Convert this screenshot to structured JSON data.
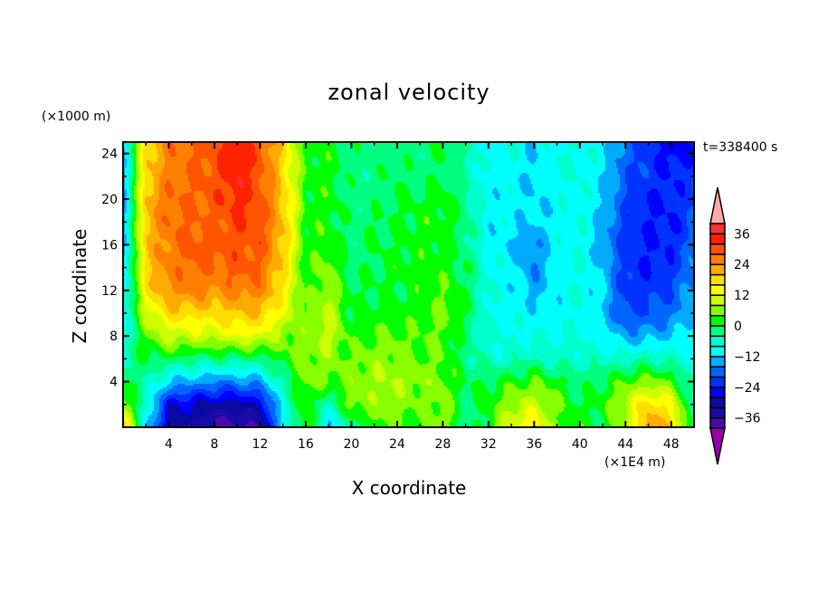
{
  "chart_data": {
    "type": "heatmap",
    "subtype": "filled-contour",
    "title": "zonal velocity",
    "xlabel": "X coordinate",
    "ylabel": "Z coordinate",
    "x_unit_label": "(×1E4 m)",
    "y_unit_label": "(×1000 m)",
    "annotation": "t=338400 s",
    "xlim": [
      0,
      50
    ],
    "ylim": [
      0,
      25
    ],
    "xticks": [
      4,
      8,
      12,
      16,
      20,
      24,
      28,
      32,
      36,
      40,
      44,
      48
    ],
    "yticks": [
      4,
      8,
      12,
      16,
      20,
      24
    ],
    "grid_x": [
      0,
      2,
      4,
      6,
      8,
      10,
      12,
      14,
      16,
      18,
      20,
      22,
      24,
      26,
      28,
      30,
      32,
      34,
      36,
      38,
      40,
      42,
      44,
      46,
      48,
      50
    ],
    "grid_z": [
      0,
      2,
      4,
      6,
      8,
      10,
      12,
      14,
      16,
      18,
      20,
      22,
      24
    ],
    "values": [
      [
        20,
        -10,
        -30,
        -32,
        -38,
        -38,
        -36,
        -10,
        4,
        -12,
        -4,
        4,
        4,
        2,
        8,
        -4,
        2,
        12,
        16,
        4,
        2,
        0,
        8,
        24,
        20,
        -4
      ],
      [
        8,
        -6,
        -26,
        -28,
        -30,
        -30,
        -28,
        -8,
        4,
        -6,
        6,
        6,
        6,
        4,
        6,
        -2,
        2,
        8,
        10,
        4,
        0,
        2,
        10,
        18,
        14,
        -6
      ],
      [
        0,
        -4,
        -12,
        -14,
        -16,
        -16,
        -14,
        -4,
        6,
        4,
        6,
        8,
        8,
        6,
        6,
        0,
        0,
        2,
        4,
        2,
        -2,
        0,
        4,
        6,
        4,
        -6
      ],
      [
        -4,
        0,
        0,
        -2,
        -2,
        -2,
        -2,
        2,
        6,
        6,
        4,
        6,
        6,
        4,
        4,
        -2,
        -6,
        -6,
        -4,
        -6,
        -6,
        -6,
        -6,
        -4,
        -6,
        -8
      ],
      [
        -8,
        4,
        10,
        10,
        10,
        12,
        12,
        6,
        6,
        10,
        2,
        4,
        4,
        4,
        4,
        -2,
        -8,
        -8,
        -8,
        -8,
        -8,
        -10,
        -14,
        -14,
        -12,
        -10
      ],
      [
        -10,
        10,
        18,
        18,
        18,
        20,
        20,
        12,
        4,
        10,
        0,
        2,
        2,
        2,
        6,
        0,
        -8,
        -10,
        -10,
        -10,
        -8,
        -12,
        -20,
        -20,
        -18,
        -12
      ],
      [
        -12,
        16,
        24,
        26,
        24,
        26,
        26,
        16,
        2,
        8,
        0,
        0,
        0,
        2,
        4,
        0,
        -8,
        -10,
        -14,
        -10,
        -8,
        -12,
        -22,
        -22,
        -20,
        -14
      ],
      [
        -14,
        18,
        26,
        28,
        28,
        30,
        28,
        18,
        2,
        6,
        -2,
        0,
        2,
        2,
        2,
        0,
        -8,
        -10,
        -16,
        -10,
        -8,
        -12,
        -22,
        -24,
        -22,
        -16
      ],
      [
        -16,
        20,
        26,
        30,
        30,
        30,
        30,
        20,
        2,
        4,
        -2,
        0,
        0,
        2,
        2,
        -2,
        -10,
        -12,
        -16,
        -10,
        -8,
        -14,
        -22,
        -24,
        -24,
        -18
      ],
      [
        -16,
        20,
        28,
        28,
        28,
        32,
        30,
        20,
        2,
        2,
        -2,
        0,
        0,
        2,
        2,
        -2,
        -10,
        -10,
        -12,
        -10,
        -8,
        -14,
        -22,
        -24,
        -24,
        -20
      ],
      [
        -16,
        20,
        28,
        28,
        30,
        34,
        30,
        20,
        2,
        2,
        -2,
        -2,
        0,
        0,
        2,
        -2,
        -10,
        -10,
        -12,
        -10,
        -8,
        -12,
        -20,
        -24,
        -24,
        -20
      ],
      [
        -14,
        18,
        26,
        28,
        30,
        36,
        30,
        18,
        2,
        2,
        -2,
        -2,
        0,
        -2,
        0,
        -4,
        -10,
        -10,
        -12,
        -8,
        -8,
        -12,
        -20,
        -22,
        -24,
        -22
      ],
      [
        -14,
        18,
        26,
        28,
        30,
        36,
        30,
        18,
        2,
        2,
        -2,
        -2,
        -2,
        -2,
        0,
        -4,
        -10,
        -8,
        -12,
        -8,
        -8,
        -10,
        -18,
        -22,
        -26,
        -24
      ]
    ],
    "colorbar": {
      "levels": [
        -40,
        -36,
        -32,
        -28,
        -24,
        -20,
        -16,
        -12,
        -8,
        -4,
        0,
        4,
        8,
        12,
        16,
        20,
        24,
        28,
        32,
        36,
        40
      ],
      "labels": [
        "36",
        "24",
        "12",
        "0",
        "-12",
        "-24",
        "-36"
      ],
      "label_values": [
        36,
        24,
        12,
        0,
        -12,
        -24,
        -36
      ],
      "colors": [
        "#4a0aa8",
        "#1a0aa8",
        "#0a0aa0",
        "#0000ff",
        "#0033ff",
        "#0066ff",
        "#00aaff",
        "#00ffff",
        "#00ffcc",
        "#00ff80",
        "#00ff00",
        "#88ff00",
        "#ccff00",
        "#ffff00",
        "#ffdd00",
        "#ffaa00",
        "#ff8000",
        "#ff5500",
        "#ff2200",
        "#ff3030"
      ],
      "over_color": "#ffaaaa",
      "under_color": "#9900aa"
    }
  }
}
